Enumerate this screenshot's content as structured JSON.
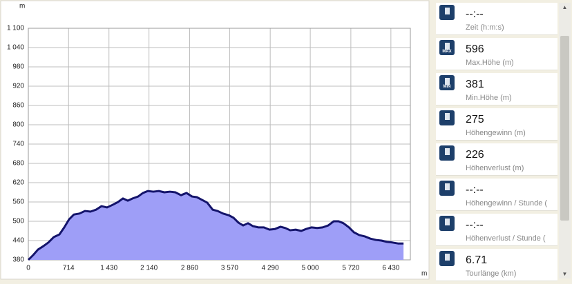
{
  "chart_data": {
    "type": "area",
    "y_unit": "m",
    "x_unit": "m",
    "x": [
      0,
      86,
      171,
      269,
      355,
      453,
      551,
      637,
      723,
      808,
      906,
      1004,
      1102,
      1200,
      1298,
      1396,
      1494,
      1592,
      1678,
      1764,
      1850,
      1947,
      2033,
      2119,
      2217,
      2315,
      2413,
      2511,
      2609,
      2707,
      2805,
      2903,
      2988,
      3086,
      3172,
      3270,
      3356,
      3454,
      3552,
      3638,
      3724,
      3810,
      3896,
      3982,
      4080,
      4178,
      4276,
      4374,
      4472,
      4558,
      4644,
      4742,
      4840,
      4926,
      5024,
      5122,
      5220,
      5318,
      5416,
      5502,
      5588,
      5686,
      5772,
      5870,
      5968,
      6066,
      6164,
      6262,
      6360,
      6458,
      6556,
      6654
    ],
    "values": [
      380,
      395,
      412,
      423,
      434,
      451,
      459,
      481,
      506,
      521,
      524,
      532,
      530,
      536,
      547,
      543,
      551,
      560,
      571,
      564,
      571,
      577,
      588,
      594,
      592,
      594,
      590,
      592,
      590,
      581,
      588,
      577,
      575,
      566,
      558,
      536,
      532,
      524,
      519,
      511,
      496,
      487,
      494,
      485,
      481,
      481,
      474,
      476,
      483,
      479,
      472,
      474,
      470,
      476,
      481,
      479,
      481,
      487,
      500,
      500,
      494,
      481,
      466,
      457,
      453,
      446,
      442,
      440,
      436,
      434,
      431,
      431
    ],
    "color": "#9e9ef7",
    "line_color": "#14146b",
    "xlim": [
      0,
      6775
    ],
    "xticks": [
      0,
      714,
      {
        "value": 1430,
        "label": "1 430"
      },
      {
        "value": 2140,
        "label": "2 140"
      },
      {
        "value": 2860,
        "label": "2 860"
      },
      {
        "value": 3570,
        "label": "3 570"
      },
      {
        "value": 4290,
        "label": "4 290"
      },
      {
        "value": 5000,
        "label": "5 000"
      },
      {
        "value": 5720,
        "label": "5 720"
      },
      {
        "value": 6430,
        "label": "6 430"
      }
    ],
    "ylim": [
      380,
      1100
    ],
    "yticks": [
      380,
      440,
      500,
      560,
      620,
      680,
      740,
      800,
      860,
      920,
      980,
      {
        "value": 1040,
        "label": "1 040"
      },
      {
        "value": 1100,
        "label": "1 100"
      }
    ],
    "grid": true
  },
  "stats": {
    "items": [
      {
        "value": "--:--",
        "label": "Zeit (h:m:s)"
      },
      {
        "value": "596",
        "label": "Max.Höhe (m)",
        "icon_text": "MAX"
      },
      {
        "value": "381",
        "label": "Min.Höhe (m)",
        "icon_text": "MIN"
      },
      {
        "value": "275",
        "label": "Höhengewinn (m)"
      },
      {
        "value": "226",
        "label": "Höhenverlust (m)"
      },
      {
        "value": "--:--",
        "label": "Höhengewinn  /  Stunde ("
      },
      {
        "value": "--:--",
        "label": "Höhenverlust  /  Stunde ("
      },
      {
        "value": "6.71",
        "label": "Tourlänge (km)"
      }
    ]
  }
}
